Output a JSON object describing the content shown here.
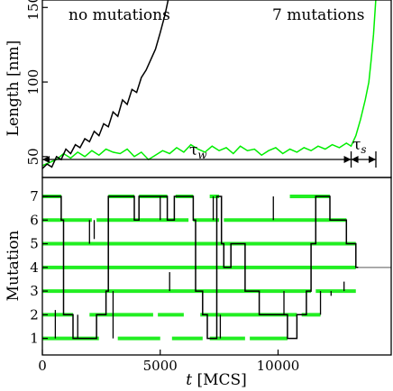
{
  "chart_data": [
    {
      "type": "line",
      "ylabel": "Length [nm]",
      "xlim": [
        0,
        14800
      ],
      "ylim": [
        36,
        155
      ],
      "yticks": [
        50,
        100,
        150
      ],
      "ytick_labels": [
        "50",
        "100",
        "150"
      ],
      "annotations": {
        "no_mut": "no mutations",
        "seven_mut": "7 mutations",
        "tau_w": "τ",
        "tau_w_sub": "w",
        "tau_s": "τ",
        "tau_s_sub": "s"
      },
      "tau_w_range": [
        0,
        13100
      ],
      "tau_s_range": [
        13100,
        14150
      ],
      "series": [
        {
          "color": "#000000",
          "points": [
            [
              0,
              42
            ],
            [
              200,
              45
            ],
            [
              400,
              43
            ],
            [
              600,
              50
            ],
            [
              800,
              48
            ],
            [
              1000,
              55
            ],
            [
              1200,
              52
            ],
            [
              1400,
              58
            ],
            [
              1600,
              56
            ],
            [
              1800,
              62
            ],
            [
              2000,
              60
            ],
            [
              2200,
              67
            ],
            [
              2400,
              64
            ],
            [
              2600,
              72
            ],
            [
              2800,
              70
            ],
            [
              3000,
              80
            ],
            [
              3200,
              77
            ],
            [
              3400,
              88
            ],
            [
              3600,
              85
            ],
            [
              3800,
              95
            ],
            [
              4000,
              93
            ],
            [
              4200,
              103
            ],
            [
              4400,
              108
            ],
            [
              4600,
              115
            ],
            [
              4800,
              122
            ],
            [
              5000,
              133
            ],
            [
              5200,
              145
            ],
            [
              5350,
              156
            ]
          ]
        },
        {
          "color": "#00ee00",
          "points": [
            [
              0,
              44
            ],
            [
              300,
              46
            ],
            [
              600,
              48
            ],
            [
              900,
              52
            ],
            [
              1200,
              49
            ],
            [
              1500,
              53
            ],
            [
              1800,
              50
            ],
            [
              2100,
              54
            ],
            [
              2400,
              51
            ],
            [
              2700,
              55
            ],
            [
              3000,
              53
            ],
            [
              3300,
              52
            ],
            [
              3600,
              55
            ],
            [
              3900,
              50
            ],
            [
              4200,
              53
            ],
            [
              4500,
              48
            ],
            [
              4800,
              51
            ],
            [
              5100,
              54
            ],
            [
              5400,
              52
            ],
            [
              5700,
              56
            ],
            [
              6000,
              53
            ],
            [
              6300,
              58
            ],
            [
              6600,
              55
            ],
            [
              6900,
              53
            ],
            [
              7200,
              57
            ],
            [
              7500,
              54
            ],
            [
              7800,
              56
            ],
            [
              8100,
              52
            ],
            [
              8400,
              57
            ],
            [
              8700,
              54
            ],
            [
              9000,
              55
            ],
            [
              9300,
              51
            ],
            [
              9600,
              54
            ],
            [
              9900,
              56
            ],
            [
              10200,
              52
            ],
            [
              10500,
              55
            ],
            [
              10800,
              53
            ],
            [
              11100,
              56
            ],
            [
              11400,
              54
            ],
            [
              11700,
              57
            ],
            [
              12000,
              55
            ],
            [
              12300,
              58
            ],
            [
              12600,
              56
            ],
            [
              12900,
              59
            ],
            [
              13100,
              57
            ],
            [
              13300,
              64
            ],
            [
              13500,
              75
            ],
            [
              13700,
              88
            ],
            [
              13850,
              100
            ],
            [
              13950,
              115
            ],
            [
              14050,
              132
            ],
            [
              14150,
              156
            ]
          ]
        }
      ]
    },
    {
      "type": "line",
      "ylabel": "Mutation",
      "xlabel_t": "t",
      "xlabel_rest": " [MCS]",
      "xlim": [
        0,
        14800
      ],
      "ylim": [
        0.3,
        7.8
      ],
      "xticks": [
        0,
        5000,
        10000
      ],
      "xtick_labels": [
        "0",
        "5000",
        "10000"
      ],
      "yticks": [
        1,
        2,
        3,
        4,
        5,
        6,
        7
      ],
      "ytick_labels": [
        "1",
        "2",
        "3",
        "4",
        "5",
        "6",
        "7"
      ],
      "green_segments": [
        [
          7,
          0,
          800
        ],
        [
          7,
          2800,
          3900
        ],
        [
          7,
          4100,
          5300
        ],
        [
          7,
          5650,
          6400
        ],
        [
          7,
          7100,
          7500
        ],
        [
          7,
          10500,
          12200
        ],
        [
          6,
          0,
          2100
        ],
        [
          6,
          2300,
          6200
        ],
        [
          6,
          6400,
          7500
        ],
        [
          6,
          7700,
          12900
        ],
        [
          5,
          0,
          13300
        ],
        [
          4,
          0,
          13300
        ],
        [
          3,
          0,
          11400
        ],
        [
          3,
          11600,
          13300
        ],
        [
          2,
          0,
          1300
        ],
        [
          2,
          2000,
          4700
        ],
        [
          2,
          4900,
          6000
        ],
        [
          2,
          6700,
          10800
        ],
        [
          2,
          11000,
          11800
        ],
        [
          1,
          0,
          2400
        ],
        [
          1,
          3200,
          5000
        ],
        [
          1,
          5500,
          6800
        ],
        [
          1,
          7100,
          8600
        ],
        [
          1,
          8800,
          10400
        ]
      ],
      "black_path": [
        [
          0,
          7
        ],
        [
          800,
          7
        ],
        [
          800,
          6
        ],
        [
          900,
          6
        ],
        [
          900,
          2
        ],
        [
          1300,
          2
        ],
        [
          1300,
          1
        ],
        [
          2300,
          1
        ],
        [
          2300,
          2
        ],
        [
          2700,
          2
        ],
        [
          2700,
          3
        ],
        [
          2800,
          3
        ],
        [
          2800,
          7
        ],
        [
          3900,
          7
        ],
        [
          3900,
          6
        ],
        [
          4100,
          6
        ],
        [
          4100,
          7
        ],
        [
          5300,
          7
        ],
        [
          5300,
          6
        ],
        [
          5600,
          6
        ],
        [
          5600,
          7
        ],
        [
          6400,
          7
        ],
        [
          6400,
          6
        ],
        [
          6500,
          6
        ],
        [
          6500,
          3
        ],
        [
          6800,
          3
        ],
        [
          6800,
          2
        ],
        [
          7000,
          2
        ],
        [
          7000,
          1
        ],
        [
          7400,
          1
        ],
        [
          7400,
          7
        ],
        [
          7600,
          7
        ],
        [
          7600,
          5
        ],
        [
          7700,
          5
        ],
        [
          7700,
          4
        ],
        [
          8000,
          4
        ],
        [
          8000,
          5
        ],
        [
          8600,
          5
        ],
        [
          8600,
          3
        ],
        [
          9200,
          3
        ],
        [
          9200,
          2
        ],
        [
          10400,
          2
        ],
        [
          10400,
          1
        ],
        [
          10800,
          1
        ],
        [
          10800,
          2
        ],
        [
          11200,
          2
        ],
        [
          11200,
          3
        ],
        [
          11400,
          3
        ],
        [
          11400,
          5
        ],
        [
          11600,
          5
        ],
        [
          11600,
          7
        ],
        [
          12200,
          7
        ],
        [
          12200,
          6
        ],
        [
          12900,
          6
        ],
        [
          12900,
          5
        ],
        [
          13300,
          5
        ],
        [
          13300,
          4
        ],
        [
          13400,
          4
        ]
      ],
      "black_ticks": [
        [
          550,
          1,
          2.2
        ],
        [
          1500,
          1,
          2
        ],
        [
          2000,
          6,
          5
        ],
        [
          2200,
          6,
          5.2
        ],
        [
          3000,
          3,
          1
        ],
        [
          5400,
          3,
          3.8
        ],
        [
          5000,
          6,
          7
        ],
        [
          7250,
          6,
          7
        ],
        [
          7550,
          1,
          2
        ],
        [
          9800,
          6,
          7
        ],
        [
          10250,
          2,
          3
        ],
        [
          11800,
          3,
          2
        ],
        [
          12250,
          3,
          2.8
        ],
        [
          12800,
          3,
          3.4
        ]
      ],
      "gray_line": {
        "color": "#999999",
        "y": 4,
        "x": [
          13400,
          14800
        ]
      }
    }
  ]
}
